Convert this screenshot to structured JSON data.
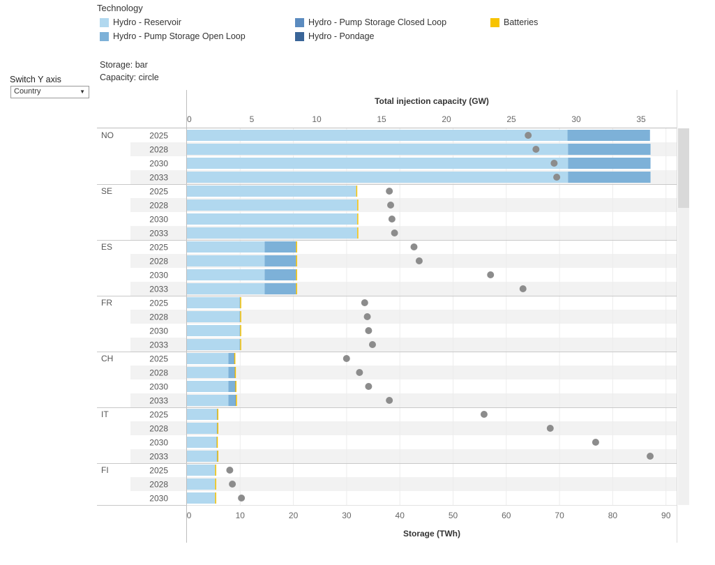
{
  "legend": {
    "title": "Technology",
    "items": [
      {
        "label": "Hydro - Reservoir",
        "color": "#b1d8ef"
      },
      {
        "label": "Hydro - Pump Storage Open Loop",
        "color": "#7db1d8"
      },
      {
        "label": "Hydro - Pump Storage Closed Loop",
        "color": "#5b8bbf"
      },
      {
        "label": "Hydro - Pondage",
        "color": "#3a6598"
      },
      {
        "label": "Batteries",
        "color": "#f7c300"
      }
    ]
  },
  "controls": {
    "switch_label": "Switch Y axis",
    "switch_value": "Country"
  },
  "notes": {
    "storage": "Storage: bar",
    "capacity": "Capacity: circle"
  },
  "colors": {
    "circle": "#8c8c8c",
    "band": "#f2f2f2",
    "axis": "#c8c8c8"
  },
  "chart_data": {
    "type": "bar",
    "top_axis": {
      "title": "Total injection capacity (GW)",
      "min": 0,
      "max": 35,
      "ticks": [
        0,
        5,
        10,
        15,
        20,
        25,
        30,
        35
      ]
    },
    "bottom_axis": {
      "title": "Storage (TWh)",
      "min": 0,
      "max": 90,
      "ticks": [
        0,
        10,
        20,
        30,
        40,
        50,
        60,
        70,
        80,
        90
      ]
    },
    "series_order": [
      "Hydro - Reservoir",
      "Hydro - Pump Storage Open Loop",
      "Hydro - Pump Storage Closed Loop",
      "Hydro - Pondage",
      "Batteries"
    ],
    "groups": [
      {
        "country": "NO",
        "rows": [
          {
            "year": "2025",
            "storage": [
              71.5,
              15.5,
              0,
              0,
              0
            ],
            "capacity": 26.3
          },
          {
            "year": "2028",
            "storage": [
              71.6,
              15.5,
              0,
              0,
              0
            ],
            "capacity": 26.9
          },
          {
            "year": "2030",
            "storage": [
              71.6,
              15.5,
              0,
              0,
              0
            ],
            "capacity": 28.3
          },
          {
            "year": "2033",
            "storage": [
              71.6,
              15.5,
              0,
              0,
              0
            ],
            "capacity": 28.5
          }
        ]
      },
      {
        "country": "SE",
        "rows": [
          {
            "year": "2025",
            "storage": [
              31.8,
              0,
              0,
              0,
              0.1
            ],
            "capacity": 15.6
          },
          {
            "year": "2028",
            "storage": [
              32.0,
              0,
              0,
              0,
              0.1
            ],
            "capacity": 15.7
          },
          {
            "year": "2030",
            "storage": [
              32.0,
              0,
              0,
              0,
              0.1
            ],
            "capacity": 15.8
          },
          {
            "year": "2033",
            "storage": [
              32.0,
              0,
              0,
              0,
              0.1
            ],
            "capacity": 16.0
          }
        ]
      },
      {
        "country": "ES",
        "rows": [
          {
            "year": "2025",
            "storage": [
              14.6,
              5.9,
              0,
              0,
              0.1
            ],
            "capacity": 17.5
          },
          {
            "year": "2028",
            "storage": [
              14.6,
              5.9,
              0,
              0,
              0.1
            ],
            "capacity": 17.9
          },
          {
            "year": "2030",
            "storage": [
              14.6,
              5.9,
              0,
              0,
              0.1
            ],
            "capacity": 23.4
          },
          {
            "year": "2033",
            "storage": [
              14.6,
              5.9,
              0,
              0,
              0.1
            ],
            "capacity": 25.9
          }
        ]
      },
      {
        "country": "FR",
        "rows": [
          {
            "year": "2025",
            "storage": [
              9.9,
              0.1,
              0,
              0,
              0.1
            ],
            "capacity": 13.7
          },
          {
            "year": "2028",
            "storage": [
              9.9,
              0.1,
              0,
              0,
              0.1
            ],
            "capacity": 13.9
          },
          {
            "year": "2030",
            "storage": [
              9.9,
              0.1,
              0,
              0,
              0.1
            ],
            "capacity": 14.0
          },
          {
            "year": "2033",
            "storage": [
              9.9,
              0.1,
              0,
              0,
              0.1
            ],
            "capacity": 14.3
          }
        ]
      },
      {
        "country": "CH",
        "rows": [
          {
            "year": "2025",
            "storage": [
              7.8,
              1.0,
              0.1,
              0,
              0.1
            ],
            "capacity": 12.3
          },
          {
            "year": "2028",
            "storage": [
              7.8,
              1.1,
              0.1,
              0,
              0.1
            ],
            "capacity": 13.3
          },
          {
            "year": "2030",
            "storage": [
              7.8,
              1.2,
              0.1,
              0,
              0.1
            ],
            "capacity": 14.0
          },
          {
            "year": "2033",
            "storage": [
              7.8,
              1.3,
              0.1,
              0,
              0.1
            ],
            "capacity": 15.6
          }
        ]
      },
      {
        "country": "IT",
        "rows": [
          {
            "year": "2025",
            "storage": [
              5.6,
              0.1,
              0,
              0,
              0.2
            ],
            "capacity": 22.9
          },
          {
            "year": "2028",
            "storage": [
              5.6,
              0.1,
              0,
              0,
              0.2
            ],
            "capacity": 28.0
          },
          {
            "year": "2030",
            "storage": [
              5.5,
              0.1,
              0,
              0,
              0.2
            ],
            "capacity": 31.5
          },
          {
            "year": "2033",
            "storage": [
              5.6,
              0.1,
              0,
              0,
              0.2
            ],
            "capacity": 35.7
          }
        ]
      },
      {
        "country": "FI",
        "rows": [
          {
            "year": "2025",
            "storage": [
              5.3,
              0,
              0,
              0,
              0.2
            ],
            "capacity": 3.3
          },
          {
            "year": "2028",
            "storage": [
              5.3,
              0,
              0,
              0,
              0.2
            ],
            "capacity": 3.5
          },
          {
            "year": "2030",
            "storage": [
              5.3,
              0,
              0,
              0,
              0.2
            ],
            "capacity": 4.2
          }
        ]
      }
    ]
  }
}
